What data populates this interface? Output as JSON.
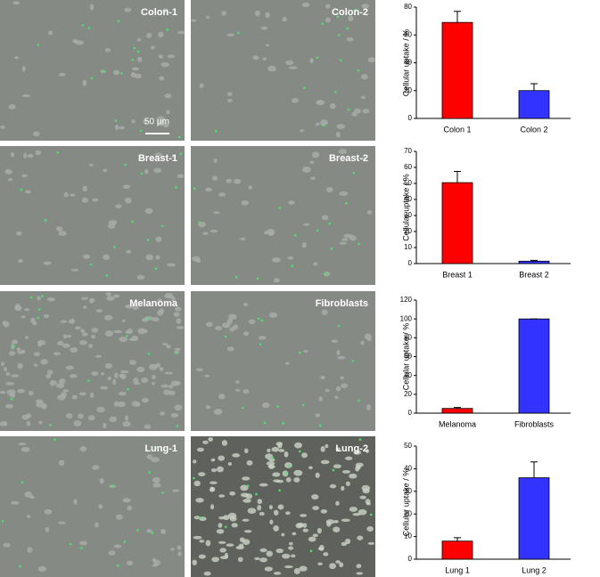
{
  "images": [
    {
      "label": "Colon-1"
    },
    {
      "label": "Colon-2"
    },
    {
      "label": "Breast-1"
    },
    {
      "label": "Breast-2"
    },
    {
      "label": "Melanoma"
    },
    {
      "label": "Fibroblasts"
    },
    {
      "label": "Lung-1"
    },
    {
      "label": "Lung-2"
    }
  ],
  "scale_bar": "50 µm",
  "chart_data": [
    {
      "type": "bar",
      "ylabel": "Cellular uptake / %",
      "categories": [
        "Colon 1",
        "Colon 2"
      ],
      "values": [
        69,
        20
      ],
      "errors": [
        8,
        5
      ],
      "colors": [
        "#ff0000",
        "#3333ff"
      ],
      "ylim": [
        0,
        80
      ],
      "yticks": [
        0,
        20,
        40,
        60,
        80
      ]
    },
    {
      "type": "bar",
      "ylabel": "Cellular uptake / %",
      "categories": [
        "Breast 1",
        "Breast 2"
      ],
      "values": [
        50.5,
        1.5
      ],
      "errors": [
        7,
        0.5
      ],
      "colors": [
        "#ff0000",
        "#3333ff"
      ],
      "ylim": [
        0,
        70
      ],
      "yticks": [
        0,
        10,
        20,
        30,
        40,
        50,
        60,
        70
      ]
    },
    {
      "type": "bar",
      "ylabel": "Cellular uptake / %",
      "categories": [
        "Melanoma",
        "Fibroblasts"
      ],
      "values": [
        5,
        100
      ],
      "errors": [
        1,
        0
      ],
      "colors": [
        "#ff0000",
        "#3333ff"
      ],
      "ylim": [
        0,
        120
      ],
      "yticks": [
        0,
        20,
        40,
        60,
        80,
        100,
        120
      ]
    },
    {
      "type": "bar",
      "ylabel": "Cellular uptake / %",
      "categories": [
        "Lung 1",
        "Lung 2"
      ],
      "values": [
        8,
        36
      ],
      "errors": [
        1.5,
        7
      ],
      "colors": [
        "#ff0000",
        "#3333ff"
      ],
      "ylim": [
        0,
        50
      ],
      "yticks": [
        0,
        10,
        20,
        30,
        40,
        50
      ]
    }
  ]
}
